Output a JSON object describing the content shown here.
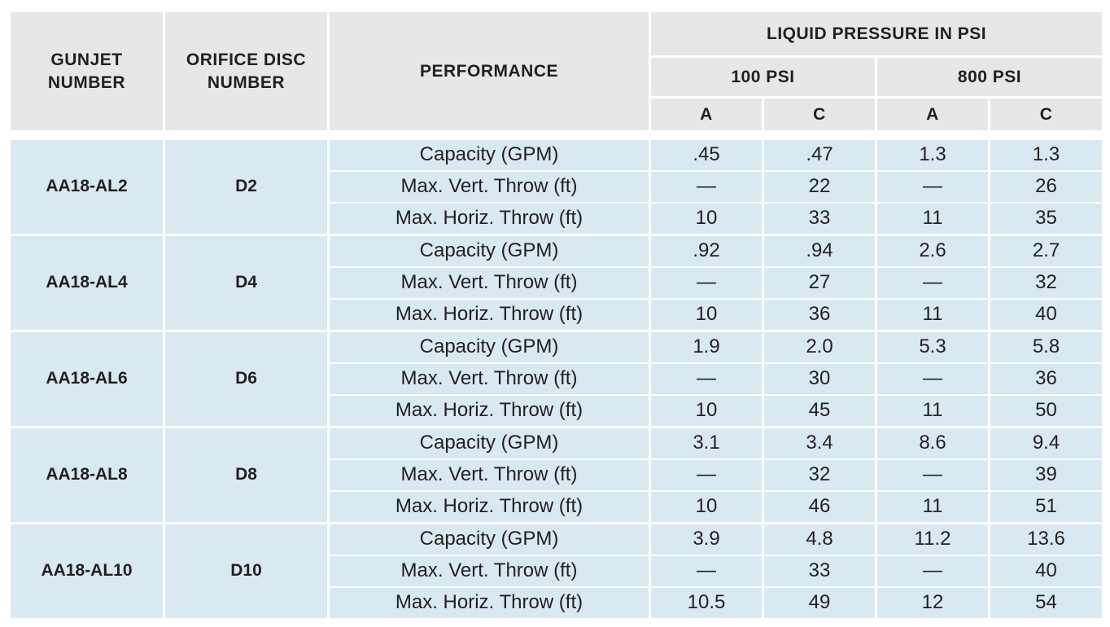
{
  "headers": {
    "gunjet": "GUNJET NUMBER",
    "orifice": "ORIFICE DISC NUMBER",
    "performance": "PERFORMANCE",
    "pressure_group": "LIQUID PRESSURE IN PSI",
    "psi_100": "100 PSI",
    "psi_800": "800 PSI",
    "col_a_100": "A",
    "col_c_100": "C",
    "col_a_800": "A",
    "col_c_800": "C"
  },
  "rows": [
    {
      "model": "AA18-AL2",
      "disc": "D2",
      "perf": [
        {
          "label": "Capacity (GPM)",
          "a100": ".45",
          "c100": ".47",
          "a800": "1.3",
          "c800": "1.3"
        },
        {
          "label": "Max. Vert. Throw (ft)",
          "a100": "—",
          "c100": "22",
          "a800": "—",
          "c800": "26"
        },
        {
          "label": "Max. Horiz. Throw (ft)",
          "a100": "10",
          "c100": "33",
          "a800": "11",
          "c800": "35"
        }
      ]
    },
    {
      "model": "AA18-AL4",
      "disc": "D4",
      "perf": [
        {
          "label": "Capacity (GPM)",
          "a100": ".92",
          "c100": ".94",
          "a800": "2.6",
          "c800": "2.7"
        },
        {
          "label": "Max. Vert. Throw (ft)",
          "a100": "—",
          "c100": "27",
          "a800": "—",
          "c800": "32"
        },
        {
          "label": "Max. Horiz. Throw (ft)",
          "a100": "10",
          "c100": "36",
          "a800": "11",
          "c800": "40"
        }
      ]
    },
    {
      "model": "AA18-AL6",
      "disc": "D6",
      "perf": [
        {
          "label": "Capacity (GPM)",
          "a100": "1.9",
          "c100": "2.0",
          "a800": "5.3",
          "c800": "5.8"
        },
        {
          "label": "Max. Vert. Throw (ft)",
          "a100": "—",
          "c100": "30",
          "a800": "—",
          "c800": "36"
        },
        {
          "label": "Max. Horiz. Throw (ft)",
          "a100": "10",
          "c100": "45",
          "a800": "11",
          "c800": "50"
        }
      ]
    },
    {
      "model": "AA18-AL8",
      "disc": "D8",
      "perf": [
        {
          "label": "Capacity (GPM)",
          "a100": "3.1",
          "c100": "3.4",
          "a800": "8.6",
          "c800": "9.4"
        },
        {
          "label": "Max. Vert. Throw (ft)",
          "a100": "—",
          "c100": "32",
          "a800": "—",
          "c800": "39"
        },
        {
          "label": "Max. Horiz. Throw (ft)",
          "a100": "10",
          "c100": "46",
          "a800": "11",
          "c800": "51"
        }
      ]
    },
    {
      "model": "AA18-AL10",
      "disc": "D10",
      "perf": [
        {
          "label": "Capacity (GPM)",
          "a100": "3.9",
          "c100": "4.8",
          "a800": "11.2",
          "c800": "13.6"
        },
        {
          "label": "Max. Vert. Throw (ft)",
          "a100": "—",
          "c100": "33",
          "a800": "—",
          "c800": "40"
        },
        {
          "label": "Max. Horiz. Throw (ft)",
          "a100": "10.5",
          "c100": "49",
          "a800": "12",
          "c800": "54"
        }
      ]
    }
  ],
  "colors": {
    "header_bg": "#e6e7e8",
    "body_bg": "#d9e9f2",
    "text": "#231f20",
    "rule": "#ffffff"
  }
}
